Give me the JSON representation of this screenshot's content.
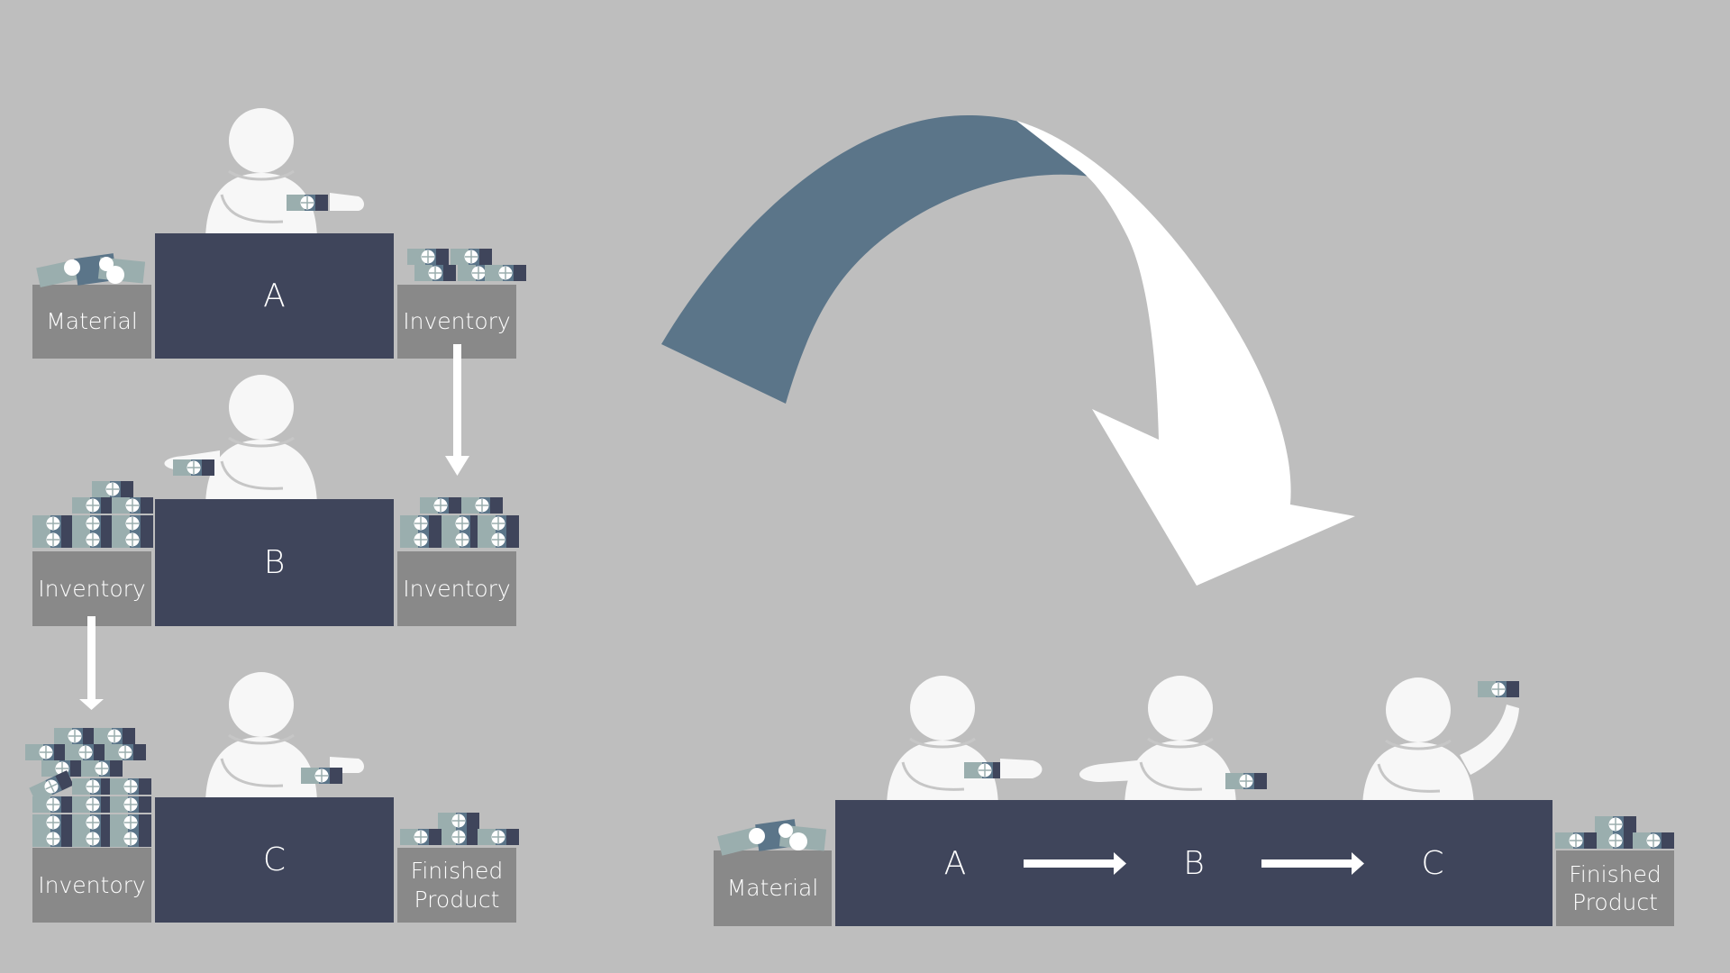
{
  "colors": {
    "background": "#bebebe",
    "station": "#3f455b",
    "bin": "#898989",
    "person": "#f7f7f7",
    "arrow_dark": "#5b7589",
    "arrow_light": "#ffffff",
    "cash_light": "#9aaeae",
    "cash_mid": "#5b7589",
    "cash_dark": "#3f455b"
  },
  "before": {
    "station_a": {
      "name": "A",
      "input": "Material",
      "output": "Inventory"
    },
    "station_b": {
      "name": "B",
      "input": "Inventory",
      "output": "Inventory"
    },
    "station_c": {
      "name": "C",
      "input": "Inventory",
      "output": "Finished\nProduct"
    }
  },
  "after": {
    "input": "Material",
    "stations": [
      "A",
      "B",
      "C"
    ],
    "output": "Finished\nProduct"
  },
  "icons": [
    "person-icon",
    "cash-stack-icon",
    "flow-arrow-icon",
    "transition-arrow-icon"
  ]
}
